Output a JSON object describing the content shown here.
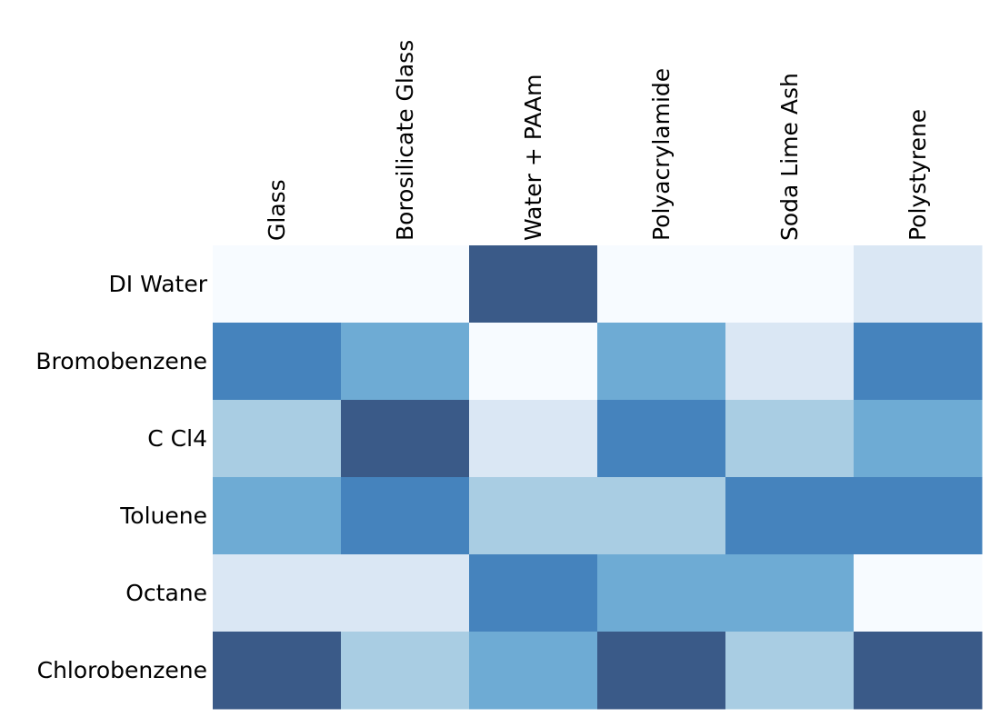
{
  "chart_data": {
    "type": "heatmap",
    "columns": [
      "Glass",
      "Borosilicate Glass",
      "Water + PAAm",
      "Polyacrylamide",
      "Soda Lime Ash",
      "Polystyrene"
    ],
    "rows": [
      "DI Water",
      "Bromobenzene",
      "C Cl4",
      "Toluene",
      "Octane",
      "Chlorobenzene"
    ],
    "values": [
      [
        0,
        0,
        5,
        0,
        0,
        1
      ],
      [
        4,
        3,
        0,
        3,
        1,
        4
      ],
      [
        2,
        5,
        1,
        4,
        2,
        3
      ],
      [
        3,
        4,
        2,
        2,
        4,
        4
      ],
      [
        1,
        1,
        4,
        3,
        3,
        0
      ],
      [
        5,
        2,
        3,
        5,
        2,
        5
      ]
    ],
    "color_scale": [
      "#f7fbff",
      "#dae7f4",
      "#a9cde3",
      "#6eabd4",
      "#4583bd",
      "#3a5a88"
    ],
    "column_label_position": "top",
    "column_label_rotation": "vertical",
    "grid": false,
    "legend": "none"
  }
}
